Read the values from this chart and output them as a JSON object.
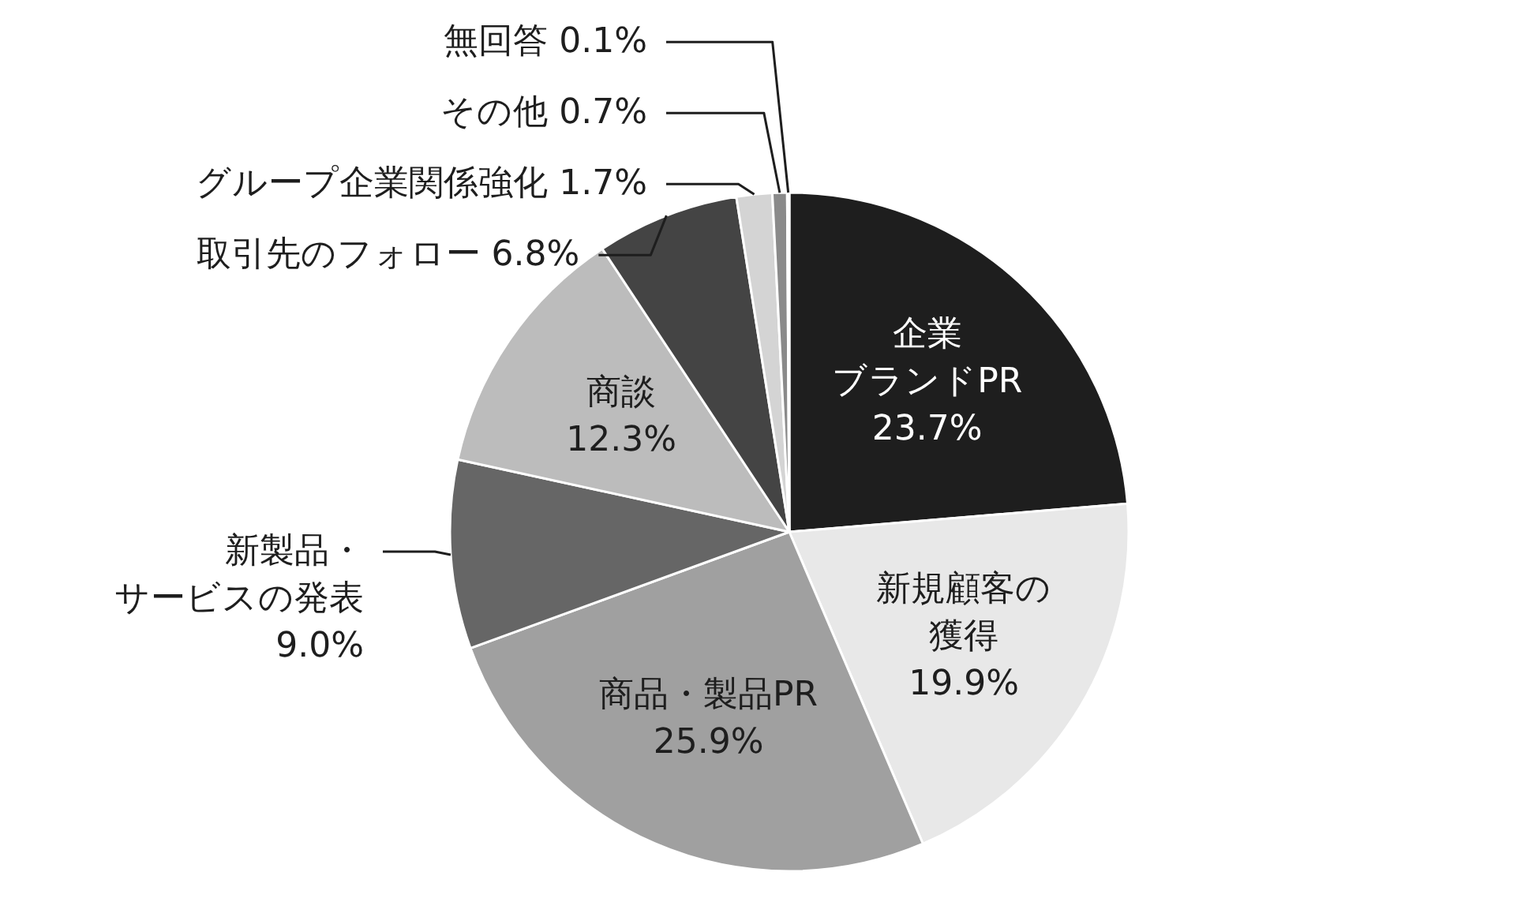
{
  "chart_data": {
    "type": "pie",
    "categories": [
      "企業ブランドPR",
      "新規顧客の獲得",
      "商品・製品PR",
      "新製品・サービスの発表",
      "商談",
      "取引先のフォロー",
      "グループ企業関係強化",
      "その他",
      "無回答"
    ],
    "values": [
      23.7,
      19.9,
      25.9,
      9.0,
      12.3,
      6.8,
      1.7,
      0.7,
      0.1
    ],
    "value_labels": [
      "23.7%",
      "19.9%",
      "25.9%",
      "9.0%",
      "12.3%",
      "6.8%",
      "1.7%",
      "0.7%",
      "0.1%"
    ],
    "colors": [
      "#1e1e1e",
      "#e8e8e8",
      "#a0a0a0",
      "#666666",
      "#bcbcbc",
      "#444444",
      "#d4d4d4",
      "#8a8a8a",
      "#333333"
    ]
  }
}
